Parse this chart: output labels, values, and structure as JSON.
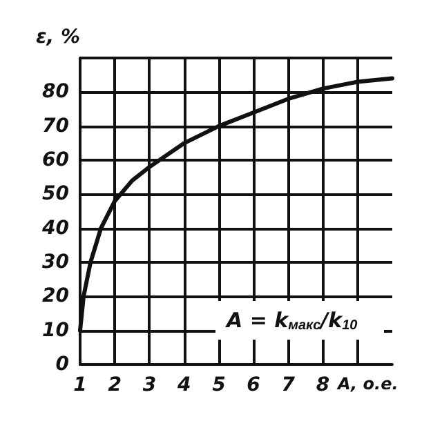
{
  "chart_data": {
    "type": "line",
    "ylabel": "ε, %",
    "xlabel": "A, о.е.",
    "x": [
      1,
      1.1,
      1.3,
      1.6,
      2,
      2.5,
      3,
      4,
      5,
      6,
      7,
      8,
      9,
      10
    ],
    "series": [
      {
        "color": "#111111",
        "values": [
          10,
          20,
          30,
          40,
          48,
          54,
          58,
          65,
          70,
          74,
          78,
          81,
          83,
          84
        ]
      }
    ],
    "xlim": [
      1,
      10
    ],
    "xticks": [
      1,
      2,
      3,
      4,
      5,
      6,
      7,
      8,
      {
        "value": 9,
        "label": null
      }
    ],
    "ylim": [
      0,
      90
    ],
    "yticks": [
      0,
      10,
      20,
      30,
      40,
      50,
      60,
      70,
      80,
      {
        "value": 90,
        "label": null
      }
    ],
    "grid": true,
    "marker": "none",
    "line_style": "solid",
    "annotations": [
      "A = k$_{макс}$/k$_{10}$"
    ]
  }
}
